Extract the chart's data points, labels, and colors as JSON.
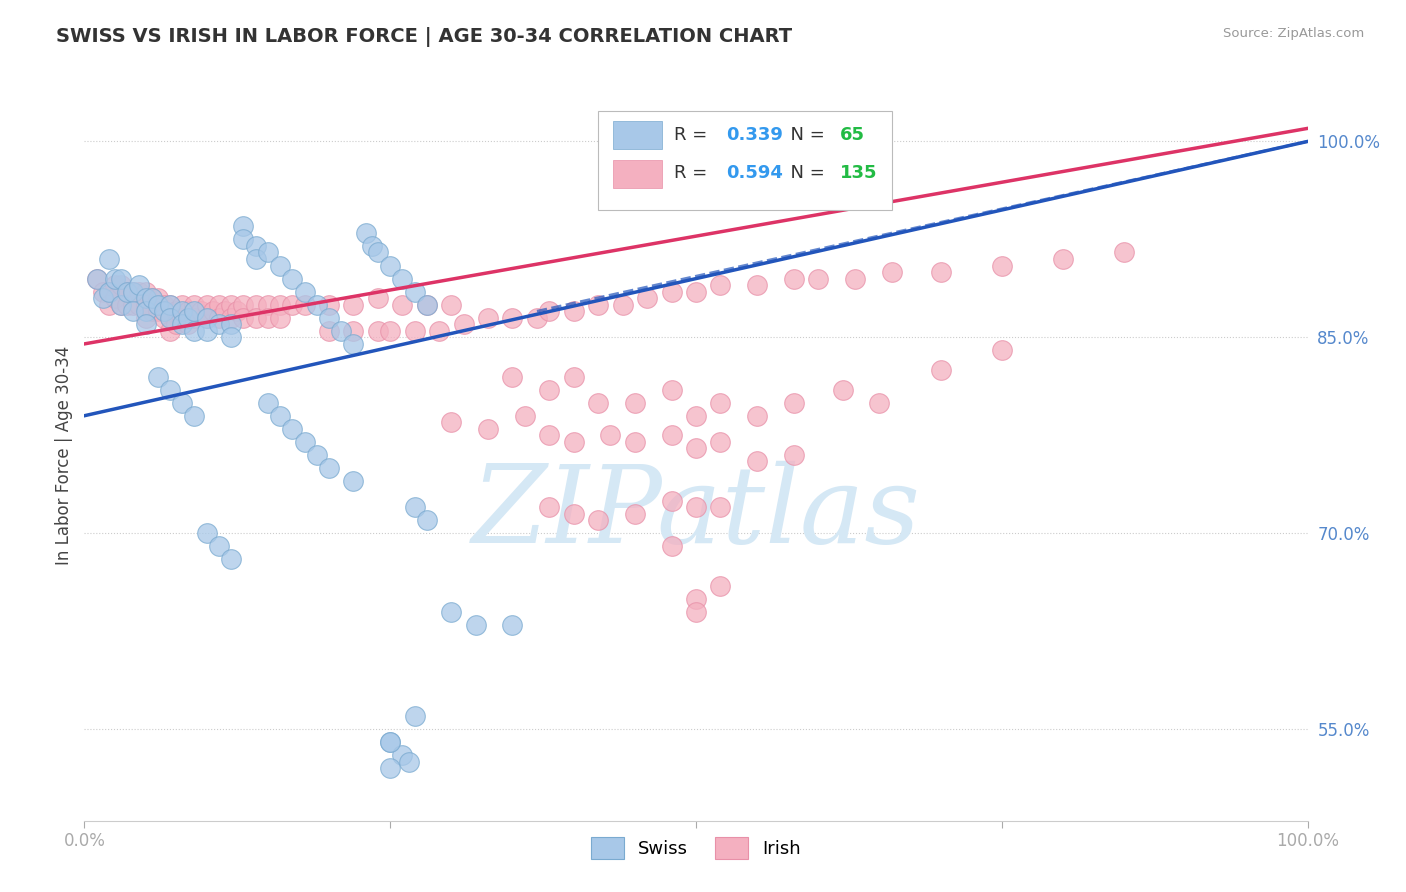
{
  "title": "SWISS VS IRISH IN LABOR FORCE | AGE 30-34 CORRELATION CHART",
  "source": "Source: ZipAtlas.com",
  "ylabel": "In Labor Force | Age 30-34",
  "xlim": [
    0.0,
    1.0
  ],
  "ylim": [
    0.48,
    1.04
  ],
  "y_ticks": [
    0.55,
    0.7,
    0.85,
    1.0
  ],
  "y_tick_labels": [
    "55.0%",
    "70.0%",
    "85.0%",
    "100.0%"
  ],
  "x_ticks": [
    0.0,
    0.25,
    0.5,
    0.75,
    1.0
  ],
  "x_tick_labels": [
    "0.0%",
    "",
    "",
    "",
    "100.0%"
  ],
  "swiss_color": "#a8c8e8",
  "swiss_edge_color": "#7aaad0",
  "irish_color": "#f4b0c0",
  "irish_edge_color": "#e890a8",
  "swiss_R": 0.339,
  "swiss_N": 65,
  "irish_R": 0.594,
  "irish_N": 135,
  "background_color": "#ffffff",
  "grid_color": "#cccccc",
  "title_color": "#333333",
  "axis_tick_color": "#5588cc",
  "watermark_color": "#d5e8f5",
  "swiss_line_color": "#2255bb",
  "irish_line_color": "#dd3366",
  "legend_R_color": "#3399ee",
  "legend_N_color": "#22bb44",
  "swiss_points": [
    [
      0.01,
      0.895
    ],
    [
      0.015,
      0.88
    ],
    [
      0.02,
      0.91
    ],
    [
      0.02,
      0.885
    ],
    [
      0.025,
      0.895
    ],
    [
      0.03,
      0.895
    ],
    [
      0.03,
      0.875
    ],
    [
      0.035,
      0.885
    ],
    [
      0.04,
      0.885
    ],
    [
      0.04,
      0.87
    ],
    [
      0.045,
      0.89
    ],
    [
      0.05,
      0.88
    ],
    [
      0.05,
      0.87
    ],
    [
      0.05,
      0.86
    ],
    [
      0.055,
      0.88
    ],
    [
      0.06,
      0.875
    ],
    [
      0.065,
      0.87
    ],
    [
      0.07,
      0.875
    ],
    [
      0.07,
      0.865
    ],
    [
      0.08,
      0.87
    ],
    [
      0.08,
      0.86
    ],
    [
      0.085,
      0.865
    ],
    [
      0.09,
      0.87
    ],
    [
      0.09,
      0.855
    ],
    [
      0.1,
      0.865
    ],
    [
      0.1,
      0.855
    ],
    [
      0.11,
      0.86
    ],
    [
      0.12,
      0.86
    ],
    [
      0.12,
      0.85
    ],
    [
      0.13,
      0.935
    ],
    [
      0.13,
      0.925
    ],
    [
      0.14,
      0.92
    ],
    [
      0.14,
      0.91
    ],
    [
      0.15,
      0.915
    ],
    [
      0.16,
      0.905
    ],
    [
      0.17,
      0.895
    ],
    [
      0.18,
      0.885
    ],
    [
      0.19,
      0.875
    ],
    [
      0.2,
      0.865
    ],
    [
      0.21,
      0.855
    ],
    [
      0.22,
      0.845
    ],
    [
      0.23,
      0.93
    ],
    [
      0.235,
      0.92
    ],
    [
      0.24,
      0.915
    ],
    [
      0.25,
      0.905
    ],
    [
      0.26,
      0.895
    ],
    [
      0.27,
      0.885
    ],
    [
      0.28,
      0.875
    ],
    [
      0.06,
      0.82
    ],
    [
      0.07,
      0.81
    ],
    [
      0.08,
      0.8
    ],
    [
      0.09,
      0.79
    ],
    [
      0.1,
      0.7
    ],
    [
      0.11,
      0.69
    ],
    [
      0.12,
      0.68
    ],
    [
      0.15,
      0.8
    ],
    [
      0.16,
      0.79
    ],
    [
      0.17,
      0.78
    ],
    [
      0.18,
      0.77
    ],
    [
      0.19,
      0.76
    ],
    [
      0.2,
      0.75
    ],
    [
      0.22,
      0.74
    ],
    [
      0.27,
      0.72
    ],
    [
      0.28,
      0.71
    ],
    [
      0.3,
      0.64
    ],
    [
      0.32,
      0.63
    ],
    [
      0.35,
      0.63
    ],
    [
      0.25,
      0.54
    ],
    [
      0.26,
      0.53
    ],
    [
      0.25,
      0.54
    ],
    [
      0.27,
      0.56
    ],
    [
      0.25,
      0.52
    ],
    [
      0.265,
      0.525
    ]
  ],
  "irish_points": [
    [
      0.01,
      0.895
    ],
    [
      0.015,
      0.885
    ],
    [
      0.02,
      0.885
    ],
    [
      0.02,
      0.875
    ],
    [
      0.025,
      0.89
    ],
    [
      0.025,
      0.88
    ],
    [
      0.03,
      0.89
    ],
    [
      0.03,
      0.875
    ],
    [
      0.035,
      0.885
    ],
    [
      0.035,
      0.875
    ],
    [
      0.04,
      0.885
    ],
    [
      0.04,
      0.875
    ],
    [
      0.045,
      0.885
    ],
    [
      0.045,
      0.875
    ],
    [
      0.05,
      0.885
    ],
    [
      0.05,
      0.875
    ],
    [
      0.05,
      0.865
    ],
    [
      0.055,
      0.88
    ],
    [
      0.055,
      0.87
    ],
    [
      0.06,
      0.88
    ],
    [
      0.06,
      0.87
    ],
    [
      0.065,
      0.875
    ],
    [
      0.065,
      0.865
    ],
    [
      0.07,
      0.875
    ],
    [
      0.07,
      0.865
    ],
    [
      0.07,
      0.855
    ],
    [
      0.075,
      0.87
    ],
    [
      0.075,
      0.86
    ],
    [
      0.08,
      0.875
    ],
    [
      0.08,
      0.865
    ],
    [
      0.085,
      0.87
    ],
    [
      0.085,
      0.86
    ],
    [
      0.09,
      0.875
    ],
    [
      0.09,
      0.865
    ],
    [
      0.095,
      0.87
    ],
    [
      0.1,
      0.875
    ],
    [
      0.1,
      0.865
    ],
    [
      0.105,
      0.87
    ],
    [
      0.11,
      0.875
    ],
    [
      0.11,
      0.865
    ],
    [
      0.115,
      0.87
    ],
    [
      0.12,
      0.875
    ],
    [
      0.12,
      0.865
    ],
    [
      0.125,
      0.87
    ],
    [
      0.13,
      0.875
    ],
    [
      0.13,
      0.865
    ],
    [
      0.14,
      0.875
    ],
    [
      0.14,
      0.865
    ],
    [
      0.15,
      0.875
    ],
    [
      0.15,
      0.865
    ],
    [
      0.16,
      0.875
    ],
    [
      0.16,
      0.865
    ],
    [
      0.17,
      0.875
    ],
    [
      0.18,
      0.875
    ],
    [
      0.2,
      0.875
    ],
    [
      0.22,
      0.875
    ],
    [
      0.24,
      0.88
    ],
    [
      0.26,
      0.875
    ],
    [
      0.28,
      0.875
    ],
    [
      0.3,
      0.875
    ],
    [
      0.2,
      0.855
    ],
    [
      0.22,
      0.855
    ],
    [
      0.24,
      0.855
    ],
    [
      0.25,
      0.855
    ],
    [
      0.27,
      0.855
    ],
    [
      0.29,
      0.855
    ],
    [
      0.31,
      0.86
    ],
    [
      0.33,
      0.865
    ],
    [
      0.35,
      0.865
    ],
    [
      0.37,
      0.865
    ],
    [
      0.38,
      0.87
    ],
    [
      0.4,
      0.87
    ],
    [
      0.42,
      0.875
    ],
    [
      0.44,
      0.875
    ],
    [
      0.46,
      0.88
    ],
    [
      0.48,
      0.885
    ],
    [
      0.5,
      0.885
    ],
    [
      0.52,
      0.89
    ],
    [
      0.55,
      0.89
    ],
    [
      0.58,
      0.895
    ],
    [
      0.6,
      0.895
    ],
    [
      0.63,
      0.895
    ],
    [
      0.66,
      0.9
    ],
    [
      0.7,
      0.9
    ],
    [
      0.75,
      0.905
    ],
    [
      0.8,
      0.91
    ],
    [
      0.85,
      0.915
    ],
    [
      0.35,
      0.82
    ],
    [
      0.38,
      0.81
    ],
    [
      0.4,
      0.82
    ],
    [
      0.42,
      0.8
    ],
    [
      0.45,
      0.8
    ],
    [
      0.48,
      0.81
    ],
    [
      0.5,
      0.79
    ],
    [
      0.52,
      0.8
    ],
    [
      0.55,
      0.79
    ],
    [
      0.58,
      0.8
    ],
    [
      0.62,
      0.81
    ],
    [
      0.65,
      0.8
    ],
    [
      0.7,
      0.825
    ],
    [
      0.75,
      0.84
    ],
    [
      0.3,
      0.785
    ],
    [
      0.33,
      0.78
    ],
    [
      0.36,
      0.79
    ],
    [
      0.38,
      0.775
    ],
    [
      0.4,
      0.77
    ],
    [
      0.43,
      0.775
    ],
    [
      0.45,
      0.77
    ],
    [
      0.48,
      0.775
    ],
    [
      0.5,
      0.765
    ],
    [
      0.52,
      0.77
    ],
    [
      0.55,
      0.755
    ],
    [
      0.58,
      0.76
    ],
    [
      0.38,
      0.72
    ],
    [
      0.4,
      0.715
    ],
    [
      0.42,
      0.71
    ],
    [
      0.45,
      0.715
    ],
    [
      0.48,
      0.725
    ],
    [
      0.5,
      0.72
    ],
    [
      0.52,
      0.72
    ],
    [
      0.48,
      0.69
    ],
    [
      0.5,
      0.65
    ],
    [
      0.52,
      0.66
    ],
    [
      0.5,
      0.64
    ]
  ],
  "swiss_line": [
    0.0,
    0.79,
    1.0,
    1.0
  ],
  "swiss_line_dashed": [
    0.37,
    0.87,
    1.0,
    1.0
  ],
  "irish_line": [
    0.0,
    0.845,
    1.0,
    1.01
  ]
}
